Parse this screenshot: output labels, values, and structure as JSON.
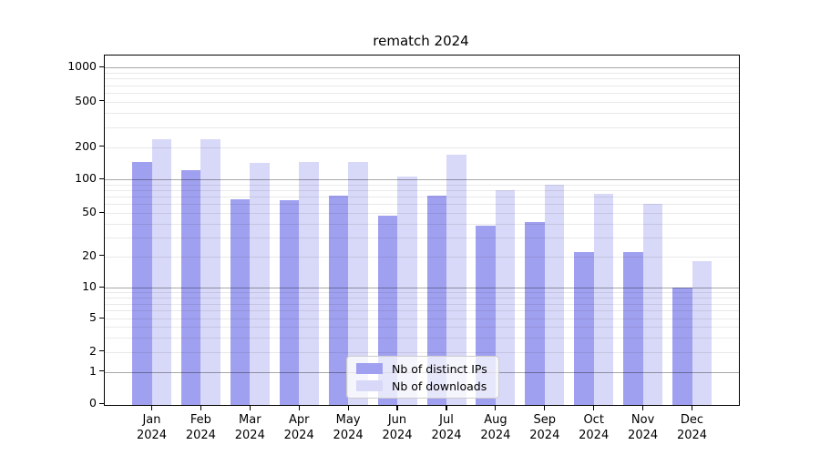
{
  "chart_data": {
    "type": "bar",
    "title": "rematch 2024",
    "categories": [
      "Jan 2024",
      "Feb 2024",
      "Mar 2024",
      "Apr 2024",
      "May 2024",
      "Jun 2024",
      "Jul 2024",
      "Aug 2024",
      "Sep 2024",
      "Oct 2024",
      "Nov 2024",
      "Dec 2024"
    ],
    "series": [
      {
        "name": "Nb of distinct IPs",
        "color": "#a0a0f0",
        "values": [
          147,
          122,
          67,
          65,
          72,
          47,
          72,
          38,
          41,
          22,
          22,
          10
        ]
      },
      {
        "name": "Nb of downloads",
        "color": "#d8d8f8",
        "values": [
          236,
          235,
          144,
          145,
          146,
          107,
          169,
          80,
          90,
          74,
          60,
          18
        ]
      }
    ],
    "xlabel": "",
    "ylabel": "",
    "yscale": "symlog",
    "ytick_values": [
      0,
      1,
      2,
      5,
      10,
      20,
      50,
      100,
      200,
      500,
      1000
    ],
    "ylim": [
      0,
      1300
    ],
    "grid": "horizontal, solid at powers of 10, faint minors",
    "legend_position": "lower center",
    "colors": {
      "background": "#ffffff",
      "axis": "#000000",
      "major_gridline": "#a8a8a8",
      "minor_gridline": "#e9e9e9",
      "legend_border": "#cccccc"
    }
  }
}
